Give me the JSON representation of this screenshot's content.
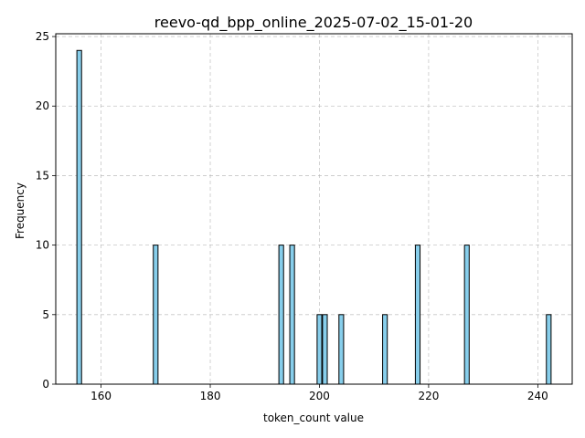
{
  "chart_data": {
    "type": "bar",
    "title": "reevo-qd_bpp_online_2025-07-02_15-01-20",
    "xlabel": "token_count value",
    "ylabel": "Frequency",
    "xlim": [
      151.7,
      246.3
    ],
    "ylim": [
      0,
      25.2
    ],
    "bin_width": 0.86,
    "xticks": [
      160,
      180,
      200,
      220,
      240
    ],
    "yticks": [
      0,
      5,
      10,
      15,
      20,
      25
    ],
    "grid": true,
    "bar_color": "#87ceeb",
    "edge_color": "#000000",
    "bins": [
      {
        "x": 156,
        "count": 24
      },
      {
        "x": 170,
        "count": 10
      },
      {
        "x": 193,
        "count": 10
      },
      {
        "x": 195,
        "count": 10
      },
      {
        "x": 200,
        "count": 5
      },
      {
        "x": 201,
        "count": 5
      },
      {
        "x": 204,
        "count": 5
      },
      {
        "x": 212,
        "count": 5
      },
      {
        "x": 218,
        "count": 10
      },
      {
        "x": 227,
        "count": 10
      },
      {
        "x": 242,
        "count": 5
      }
    ]
  }
}
